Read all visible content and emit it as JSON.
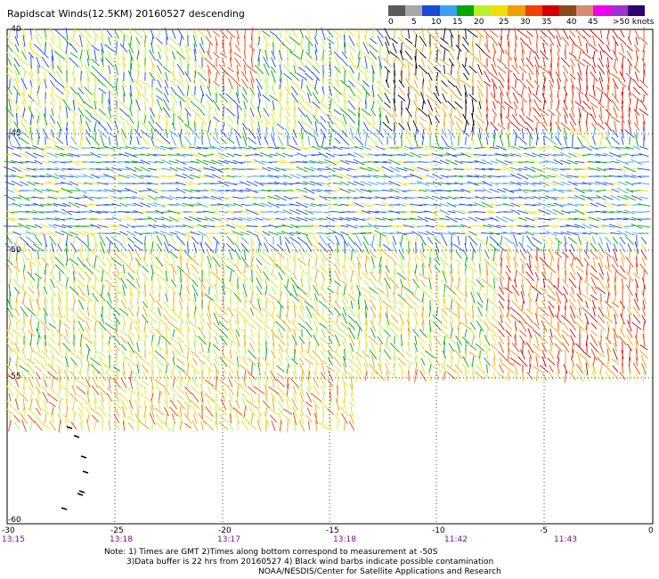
{
  "title": "Rapidscat Winds(12.5KM) 20160527 descending",
  "colorbar": {
    "colors": [
      "#5a5a5a",
      "#a8a8a8",
      "#1e48d8",
      "#3aa0f0",
      "#00a800",
      "#b8f030",
      "#f0e000",
      "#f0a000",
      "#f04000",
      "#d00000",
      "#8a4a1a",
      "#d88a70",
      "#f000f0",
      "#a030d0",
      "#300070"
    ],
    "labels": [
      "0",
      "5",
      "10",
      "15",
      "20",
      "25",
      "30",
      "35",
      "40",
      "45",
      ">50 knots"
    ]
  },
  "map": {
    "lat_labels": [
      "-40",
      "-45",
      "-50",
      "-55",
      "-60"
    ],
    "lon_labels": [
      "-30",
      "-25",
      "-20",
      "-15",
      "-10",
      "-5",
      "0"
    ],
    "time_labels": [
      "13:15",
      "13:18",
      "13:17",
      "13:18",
      "11:42",
      "11:43"
    ],
    "lon_range": [
      -30,
      0
    ],
    "lat_range": [
      -60,
      -40
    ],
    "gridlines": true
  },
  "notes": {
    "line1": "Note: 1) Times are GMT 2)Times along bottom correspond to measurement at -50S",
    "line2": "3)Data buffer is 22 hrs from 20160527 4) Black wind barbs indicate possible contamination",
    "line3": "NOAA/NESDIS/Center for Satellite Applications and Research"
  }
}
